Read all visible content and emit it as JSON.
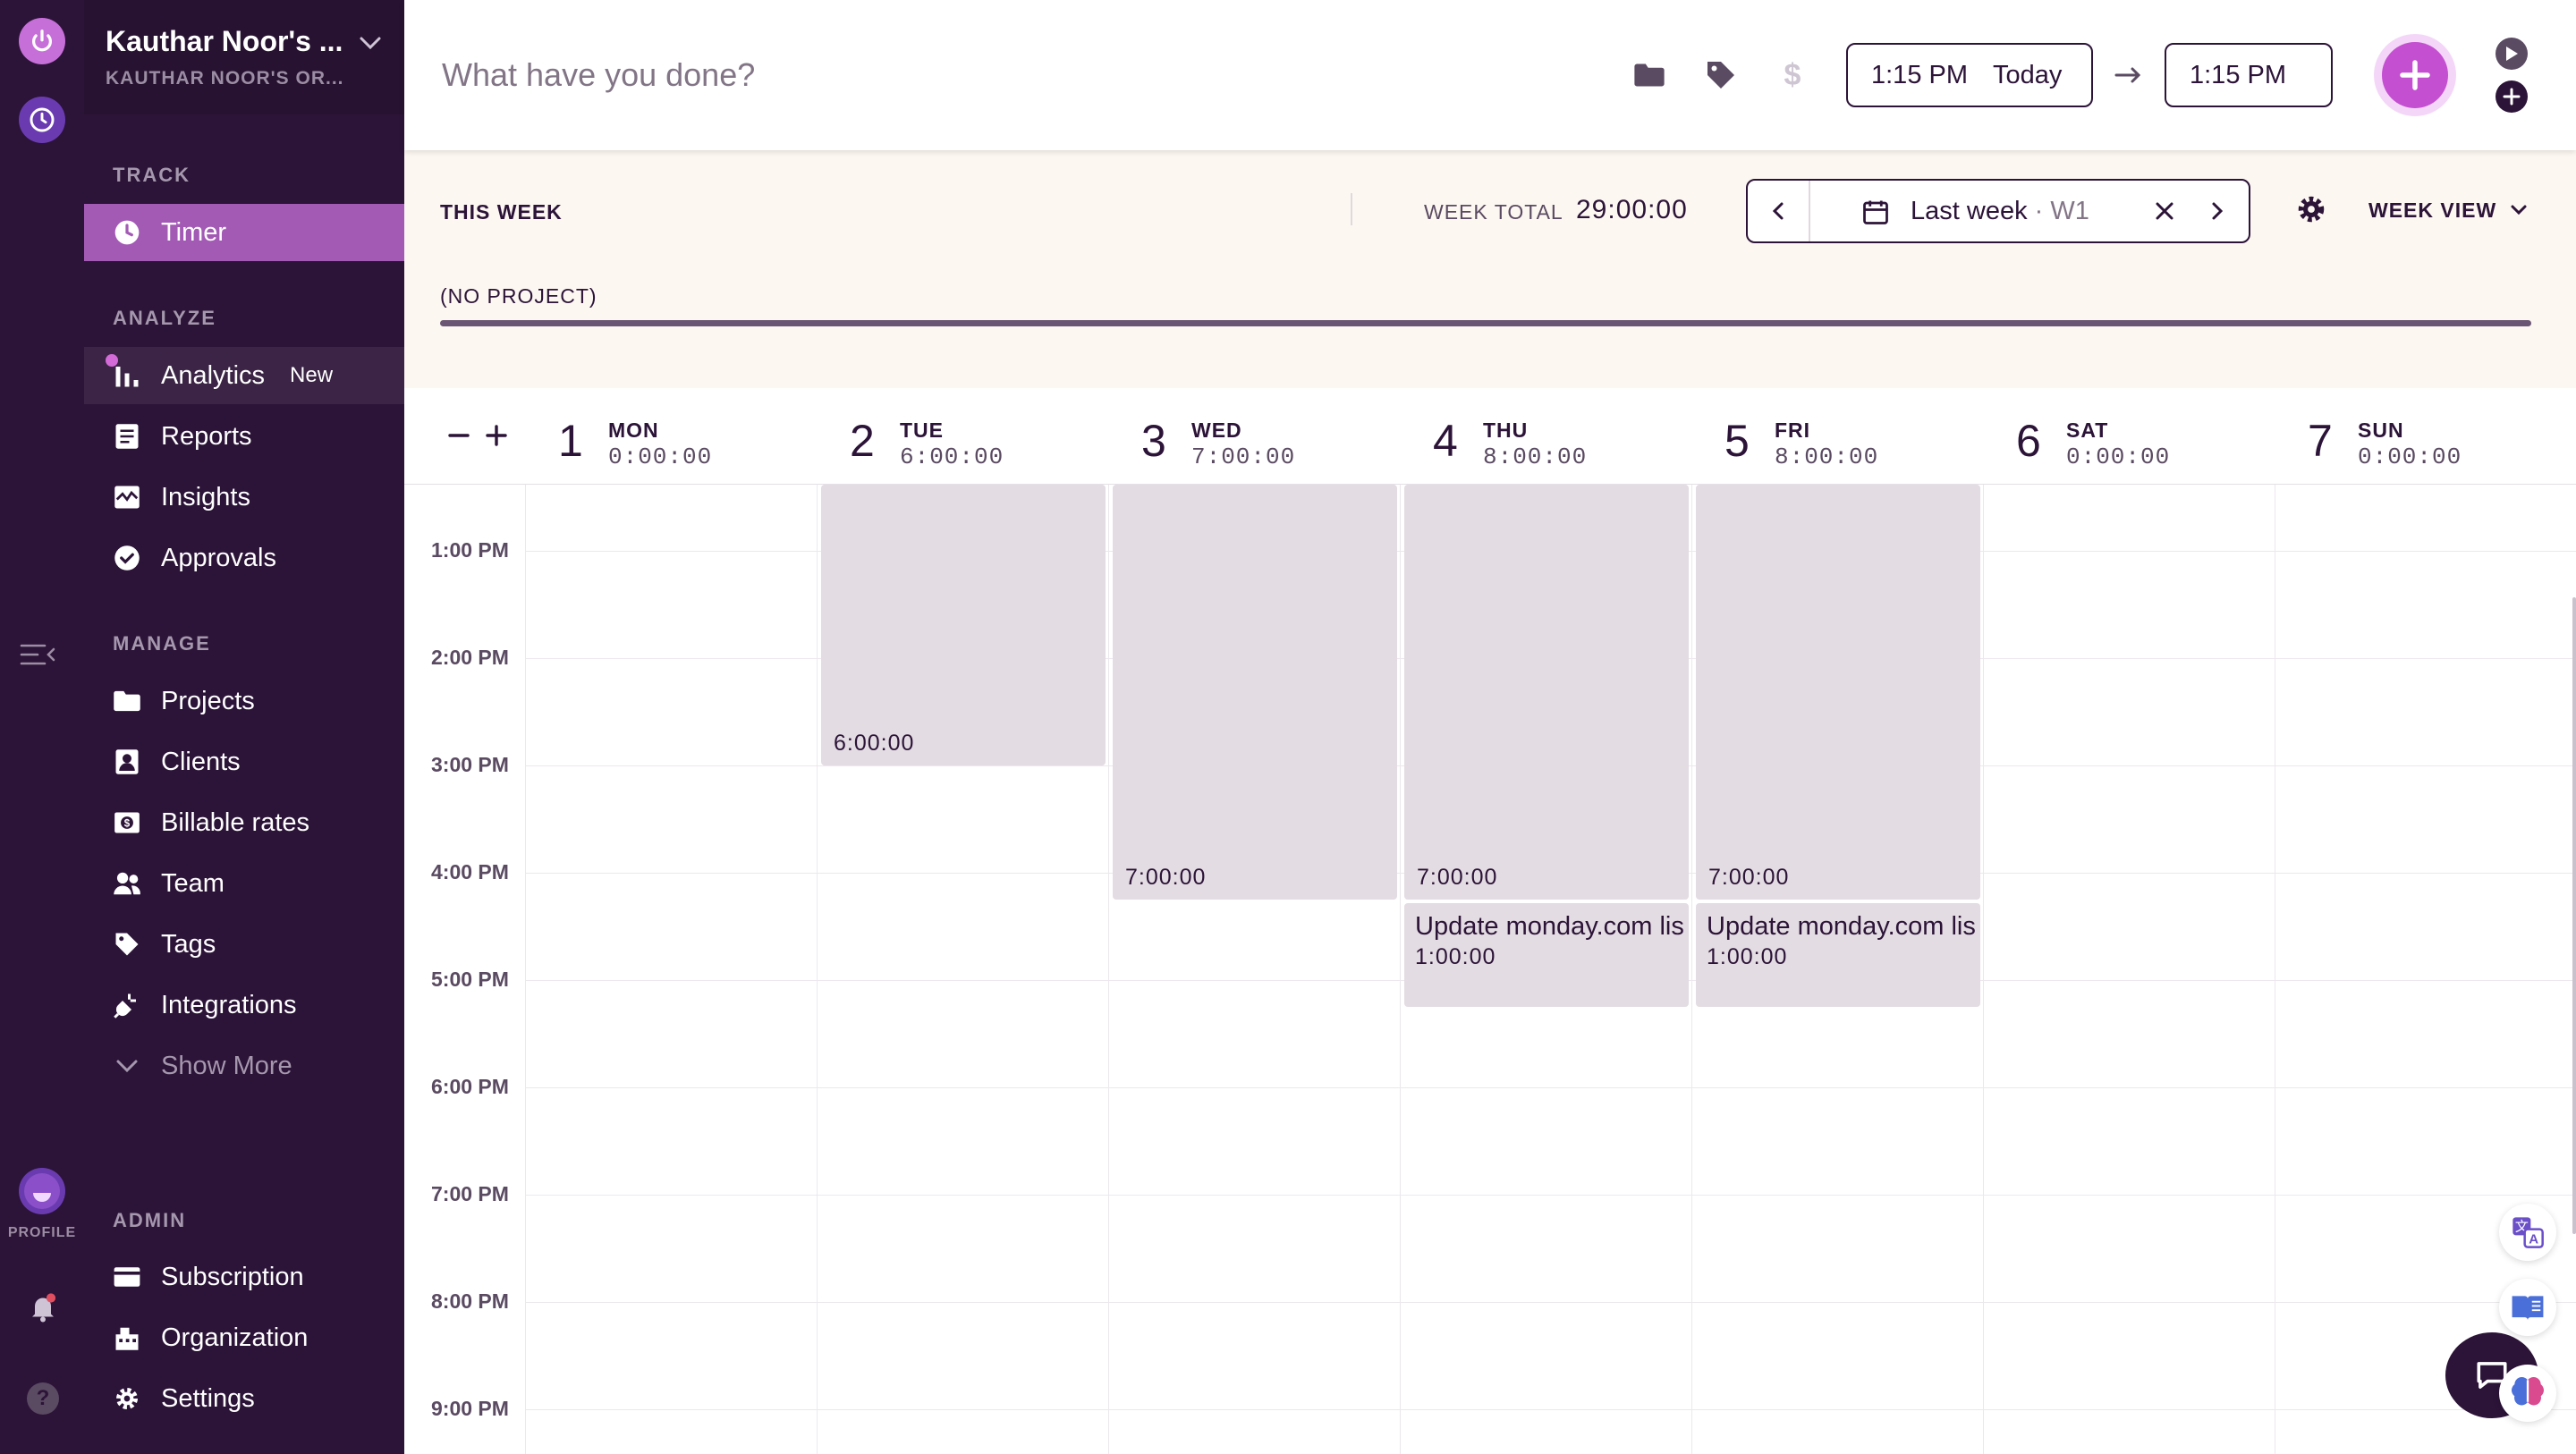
{
  "org": {
    "name": "Kauthar Noor's ...",
    "subtitle": "KAUTHAR NOOR'S OR..."
  },
  "rail": {
    "profile_label": "PROFILE"
  },
  "sidebar": {
    "track_title": "TRACK",
    "timer": "Timer",
    "analyze_title": "ANALYZE",
    "analytics": "Analytics",
    "analytics_badge": "New",
    "reports": "Reports",
    "insights": "Insights",
    "approvals": "Approvals",
    "manage_title": "MANAGE",
    "projects": "Projects",
    "clients": "Clients",
    "billable_rates": "Billable rates",
    "team": "Team",
    "tags": "Tags",
    "integrations": "Integrations",
    "show_more": "Show More",
    "admin_title": "ADMIN",
    "subscription": "Subscription",
    "organization": "Organization",
    "settings": "Settings"
  },
  "timer_bar": {
    "placeholder": "What have you done?",
    "start_time": "1:15 PM",
    "start_day": "Today",
    "end_time": "1:15 PM",
    "billable_symbol": "$"
  },
  "week": {
    "this_week_label": "THIS WEEK",
    "total_label": "WEEK TOTAL",
    "total_value": "29:00:00",
    "range_label": "Last week",
    "range_week": "W1",
    "view_label": "WEEK VIEW",
    "project_label": "(NO PROJECT)"
  },
  "days": [
    {
      "num": "1",
      "name": "MON",
      "total": "0:00:00"
    },
    {
      "num": "2",
      "name": "TUE",
      "total": "6:00:00"
    },
    {
      "num": "3",
      "name": "WED",
      "total": "7:00:00"
    },
    {
      "num": "4",
      "name": "THU",
      "total": "8:00:00"
    },
    {
      "num": "5",
      "name": "FRI",
      "total": "8:00:00"
    },
    {
      "num": "6",
      "name": "SAT",
      "total": "0:00:00"
    },
    {
      "num": "7",
      "name": "SUN",
      "total": "0:00:00"
    }
  ],
  "hours": [
    "1:00 PM",
    "2:00 PM",
    "3:00 PM",
    "4:00 PM",
    "5:00 PM",
    "6:00 PM",
    "7:00 PM",
    "8:00 PM",
    "9:00 PM"
  ],
  "entries": {
    "tue": {
      "duration": "6:00:00"
    },
    "wed": {
      "duration": "7:00:00"
    },
    "thu": {
      "duration": "7:00:00"
    },
    "fri": {
      "duration": "7:00:00"
    },
    "thu_task": {
      "description": "Update monday.com lis",
      "duration": "1:00:00"
    },
    "fri_task": {
      "description": "Update monday.com lis",
      "duration": "1:00:00"
    }
  },
  "colors": {
    "sidebar": "#2c1338",
    "accent": "#a35ab5",
    "entry": "#e3dce2",
    "header_bg": "#fcf7f1"
  }
}
